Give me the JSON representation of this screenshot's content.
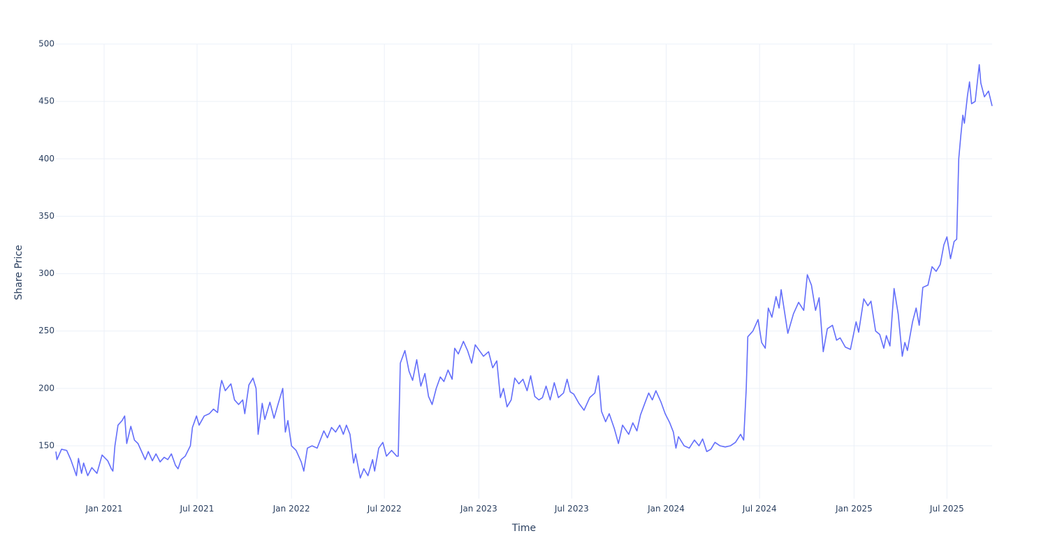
{
  "chart_data": {
    "type": "line",
    "x_label": "Time",
    "y_label": "Share Price",
    "color": "#636efa",
    "grid": true,
    "xlim": [
      "2020-09-29",
      "2025-09-27"
    ],
    "xticks": [
      {
        "value": "2021-01-01",
        "label": "Jan 2021"
      },
      {
        "value": "2021-07-01",
        "label": "Jul 2021"
      },
      {
        "value": "2022-01-01",
        "label": "Jan 2022"
      },
      {
        "value": "2022-07-01",
        "label": "Jul 2022"
      },
      {
        "value": "2023-01-01",
        "label": "Jan 2023"
      },
      {
        "value": "2023-07-01",
        "label": "Jul 2023"
      },
      {
        "value": "2024-01-01",
        "label": "Jan 2024"
      },
      {
        "value": "2024-07-01",
        "label": "Jul 2024"
      },
      {
        "value": "2025-01-01",
        "label": "Jan 2025"
      },
      {
        "value": "2025-07-01",
        "label": "Jul 2025"
      }
    ],
    "ylim": [
      104,
      500
    ],
    "yticks": [
      150,
      200,
      250,
      300,
      350,
      400,
      450,
      500
    ],
    "x": [
      "2020-09-29",
      "2020-10-01",
      "2020-10-10",
      "2020-10-20",
      "2020-10-28",
      "2020-11-08",
      "2020-11-12",
      "2020-11-18",
      "2020-11-22",
      "2020-11-30",
      "2020-12-08",
      "2020-12-18",
      "2020-12-28",
      "2021-01-08",
      "2021-01-15",
      "2021-01-18",
      "2021-01-22",
      "2021-01-28",
      "2021-02-05",
      "2021-02-10",
      "2021-02-14",
      "2021-02-22",
      "2021-03-01",
      "2021-03-08",
      "2021-03-15",
      "2021-03-22",
      "2021-03-28",
      "2021-04-05",
      "2021-04-12",
      "2021-04-20",
      "2021-04-28",
      "2021-05-05",
      "2021-05-12",
      "2021-05-20",
      "2021-05-25",
      "2021-05-31",
      "2021-06-08",
      "2021-06-18",
      "2021-06-22",
      "2021-06-30",
      "2021-07-05",
      "2021-07-15",
      "2021-07-25",
      "2021-08-02",
      "2021-08-10",
      "2021-08-15",
      "2021-08-18",
      "2021-08-25",
      "2021-09-05",
      "2021-09-12",
      "2021-09-20",
      "2021-09-28",
      "2021-10-02",
      "2021-10-10",
      "2021-10-18",
      "2021-10-24",
      "2021-10-28",
      "2021-11-05",
      "2021-11-10",
      "2021-11-20",
      "2021-11-28",
      "2021-12-05",
      "2021-12-15",
      "2021-12-20",
      "2021-12-25",
      "2022-01-01",
      "2022-01-10",
      "2022-01-20",
      "2022-01-25",
      "2022-02-01",
      "2022-02-10",
      "2022-02-20",
      "2022-03-05",
      "2022-03-12",
      "2022-03-20",
      "2022-03-28",
      "2022-04-05",
      "2022-04-12",
      "2022-04-18",
      "2022-04-25",
      "2022-05-02",
      "2022-05-06",
      "2022-05-15",
      "2022-05-22",
      "2022-05-30",
      "2022-06-08",
      "2022-06-12",
      "2022-06-20",
      "2022-06-28",
      "2022-07-05",
      "2022-07-15",
      "2022-07-25",
      "2022-07-28",
      "2022-08-01",
      "2022-08-10",
      "2022-08-18",
      "2022-08-25",
      "2022-09-02",
      "2022-09-10",
      "2022-09-18",
      "2022-09-25",
      "2022-10-02",
      "2022-10-10",
      "2022-10-18",
      "2022-10-25",
      "2022-11-02",
      "2022-11-10",
      "2022-11-15",
      "2022-11-22",
      "2022-12-02",
      "2022-12-10",
      "2022-12-18",
      "2022-12-25",
      "2023-01-10",
      "2023-01-20",
      "2023-01-28",
      "2023-02-05",
      "2023-02-12",
      "2023-02-18",
      "2023-02-25",
      "2023-03-05",
      "2023-03-12",
      "2023-03-20",
      "2023-03-28",
      "2023-04-05",
      "2023-04-12",
      "2023-04-20",
      "2023-04-28",
      "2023-05-05",
      "2023-05-12",
      "2023-05-20",
      "2023-05-28",
      "2023-06-05",
      "2023-06-15",
      "2023-06-22",
      "2023-06-28",
      "2023-07-05",
      "2023-07-15",
      "2023-07-25",
      "2023-08-05",
      "2023-08-15",
      "2023-08-22",
      "2023-08-28",
      "2023-09-05",
      "2023-09-12",
      "2023-09-22",
      "2023-09-30",
      "2023-10-08",
      "2023-10-20",
      "2023-10-28",
      "2023-11-05",
      "2023-11-12",
      "2023-11-22",
      "2023-11-28",
      "2023-12-05",
      "2023-12-12",
      "2023-12-22",
      "2023-12-30",
      "2024-01-08",
      "2024-01-15",
      "2024-01-20",
      "2024-01-25",
      "2024-02-05",
      "2024-02-15",
      "2024-02-25",
      "2024-03-05",
      "2024-03-12",
      "2024-03-20",
      "2024-03-28",
      "2024-04-05",
      "2024-04-15",
      "2024-04-25",
      "2024-05-05",
      "2024-05-15",
      "2024-05-25",
      "2024-05-31",
      "2024-06-05",
      "2024-06-08",
      "2024-06-18",
      "2024-06-28",
      "2024-07-05",
      "2024-07-12",
      "2024-07-18",
      "2024-07-25",
      "2024-08-02",
      "2024-08-08",
      "2024-08-12",
      "2024-08-25",
      "2024-09-05",
      "2024-09-15",
      "2024-09-25",
      "2024-10-02",
      "2024-10-10",
      "2024-10-18",
      "2024-10-25",
      "2024-11-02",
      "2024-11-10",
      "2024-11-20",
      "2024-11-28",
      "2024-12-05",
      "2024-12-15",
      "2024-12-25",
      "2025-01-05",
      "2025-01-10",
      "2025-01-20",
      "2025-01-28",
      "2025-02-03",
      "2025-02-12",
      "2025-02-20",
      "2025-02-28",
      "2025-03-05",
      "2025-03-12",
      "2025-03-20",
      "2025-03-28",
      "2025-04-05",
      "2025-04-10",
      "2025-04-15",
      "2025-04-25",
      "2025-05-02",
      "2025-05-08",
      "2025-05-15",
      "2025-05-25",
      "2025-06-02",
      "2025-06-10",
      "2025-06-18",
      "2025-06-25",
      "2025-07-01",
      "2025-07-08",
      "2025-07-15",
      "2025-07-20",
      "2025-07-24",
      "2025-07-28",
      "2025-08-01",
      "2025-08-04",
      "2025-08-10",
      "2025-08-14",
      "2025-08-18",
      "2025-08-25",
      "2025-09-02",
      "2025-09-05",
      "2025-09-12",
      "2025-09-20",
      "2025-09-27"
    ],
    "values": [
      145,
      138,
      147,
      146,
      138,
      124,
      139,
      126,
      135,
      124,
      131,
      126,
      142,
      137,
      130,
      128,
      150,
      168,
      172,
      176,
      152,
      167,
      155,
      152,
      145,
      138,
      145,
      137,
      143,
      136,
      140,
      138,
      143,
      133,
      130,
      138,
      141,
      150,
      166,
      176,
      168,
      176,
      178,
      182,
      179,
      200,
      207,
      198,
      204,
      190,
      186,
      190,
      178,
      203,
      209,
      200,
      160,
      187,
      173,
      188,
      174,
      185,
      200,
      162,
      172,
      150,
      146,
      136,
      128,
      148,
      150,
      148,
      163,
      157,
      166,
      162,
      168,
      160,
      168,
      160,
      135,
      143,
      122,
      130,
      124,
      138,
      128,
      148,
      153,
      141,
      146,
      141,
      141,
      222,
      233,
      215,
      207,
      225,
      202,
      213,
      193,
      186,
      200,
      210,
      206,
      216,
      208,
      235,
      230,
      241,
      233,
      222,
      238,
      228,
      232,
      218,
      224,
      192,
      200,
      184,
      190,
      209,
      204,
      208,
      198,
      211,
      193,
      190,
      192,
      202,
      190,
      205,
      192,
      196,
      208,
      197,
      195,
      187,
      181,
      192,
      196,
      211,
      180,
      171,
      178,
      165,
      152,
      168,
      160,
      170,
      163,
      177,
      189,
      196,
      190,
      198,
      188,
      178,
      170,
      162,
      148,
      158,
      150,
      148,
      155,
      150,
      156,
      145,
      147,
      153,
      150,
      149,
      150,
      153,
      160,
      155,
      200,
      245,
      250,
      260,
      240,
      235,
      270,
      262,
      280,
      270,
      286,
      248,
      265,
      275,
      268,
      299,
      290,
      268,
      279,
      232,
      252,
      255,
      242,
      244,
      236,
      234,
      258,
      249,
      278,
      272,
      276,
      250,
      247,
      235,
      246,
      237,
      287,
      265,
      228,
      240,
      233,
      258,
      270,
      255,
      288,
      290,
      306,
      302,
      308,
      325,
      332,
      313,
      328,
      330,
      400,
      420,
      438,
      431,
      455,
      467,
      448,
      450,
      482,
      466,
      454,
      459,
      446
    ]
  }
}
